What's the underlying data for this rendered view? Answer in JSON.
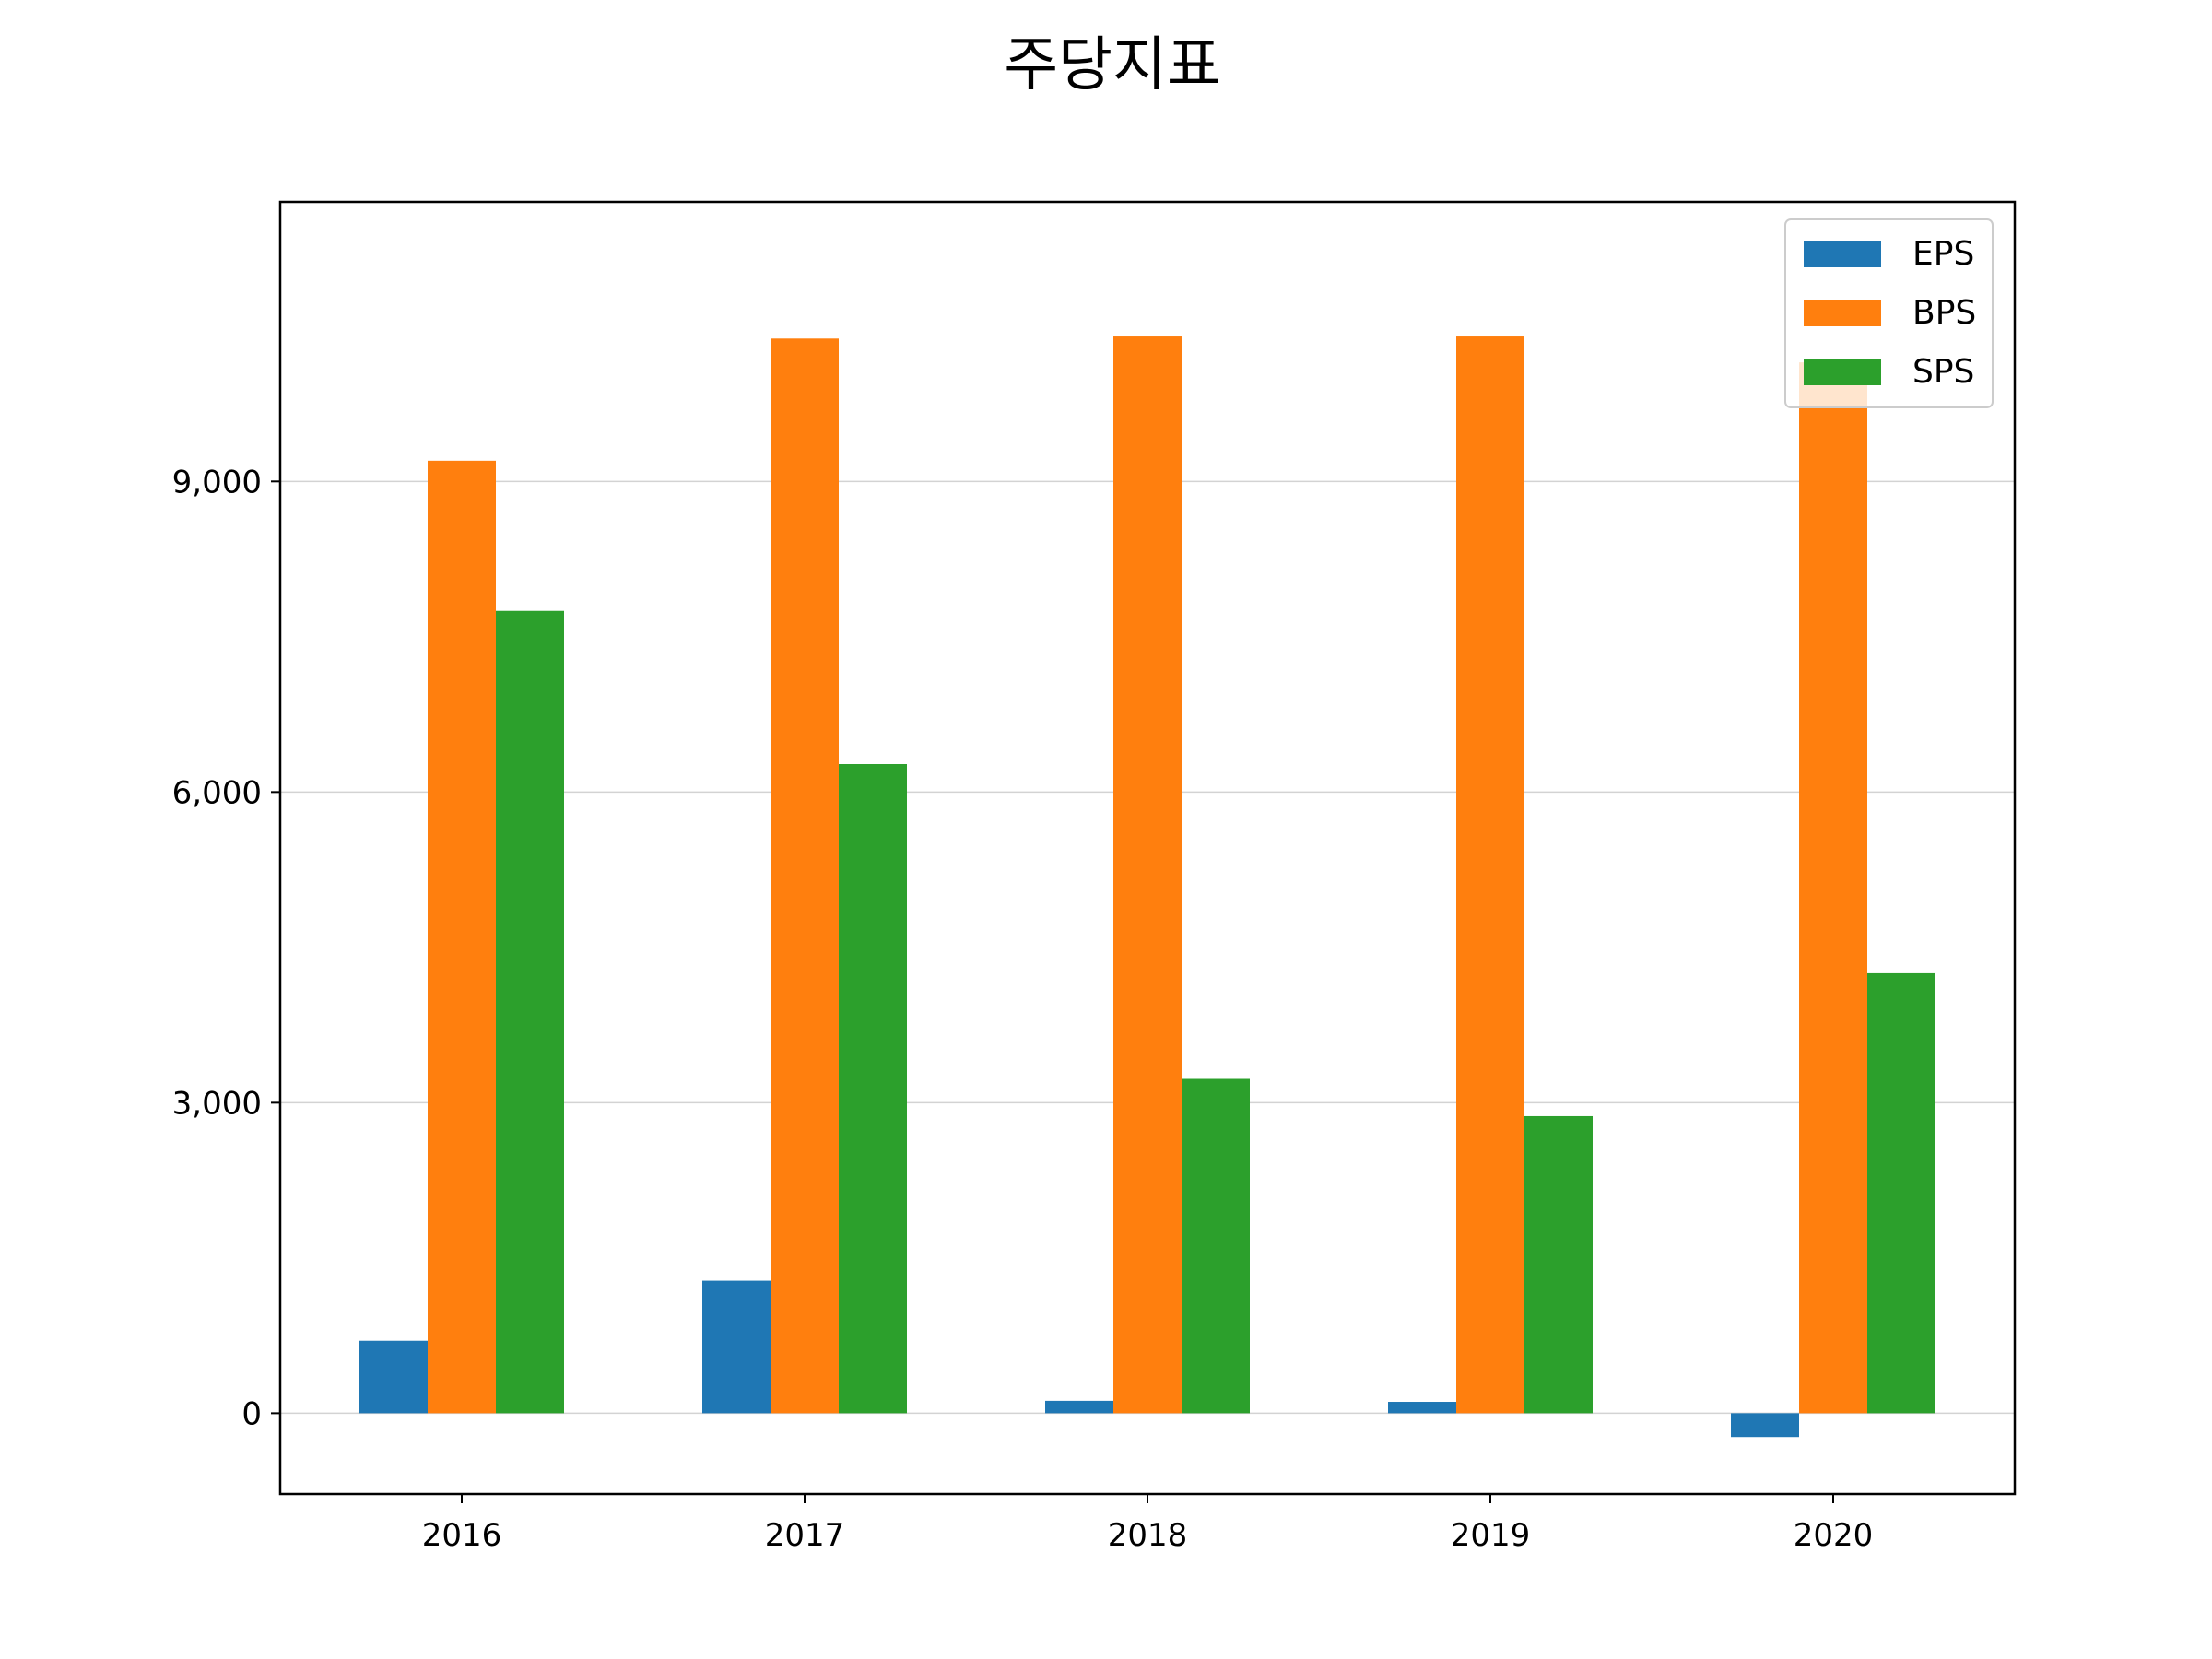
{
  "chart_data": {
    "type": "bar",
    "title": "주당지표",
    "xlabel": "",
    "ylabel": "",
    "categories": [
      "2016",
      "2017",
      "2018",
      "2019",
      "2020"
    ],
    "series": [
      {
        "name": "EPS",
        "color": "#1f77b4",
        "values": [
          700,
          1280,
          120,
          110,
          -230
        ]
      },
      {
        "name": "BPS",
        "color": "#ff7f0e",
        "values": [
          9200,
          10380,
          10400,
          10400,
          10150
        ]
      },
      {
        "name": "SPS",
        "color": "#2ca02c",
        "values": [
          7750,
          6270,
          3230,
          2870,
          4250
        ]
      }
    ],
    "yticks": [
      0,
      3000,
      6000,
      9000
    ],
    "ytick_labels": [
      "0",
      "3,000",
      "6,000",
      "9,000"
    ],
    "ylim": [
      -780,
      11700
    ],
    "grid": "y",
    "legend_position": "top-right"
  }
}
